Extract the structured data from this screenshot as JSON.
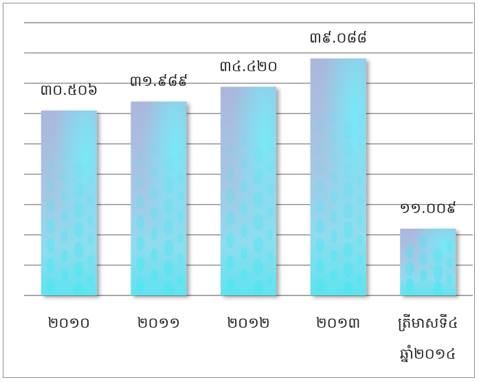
{
  "chart_data": {
    "type": "bar",
    "categories": [
      [
        "២០១០"
      ],
      [
        "២០១១"
      ],
      [
        "២០១២"
      ],
      [
        "២០១៣"
      ],
      [
        "ត្រីមាសទី៤",
        "ឆ្នាំ២០១៤"
      ]
    ],
    "values": [
      30.506,
      31.989,
      34.42,
      39.088,
      11.009
    ],
    "value_labels": [
      "៣០.៥០៦",
      "៣១.៩៨៩",
      "៣៤.៤២០",
      "៣៩.០៨៨",
      "១១.០០៩"
    ],
    "title": "",
    "xlabel": "",
    "ylabel": "",
    "ylim": [
      0,
      45
    ],
    "grid": true,
    "legend": "none",
    "colors": {
      "grid": "#8a8a8a",
      "bar_top": "#aab7dc",
      "bar_mid": "#9fd4ea",
      "bar_bottom": "#5fe3f0",
      "bubble": "#4de6f2"
    }
  }
}
